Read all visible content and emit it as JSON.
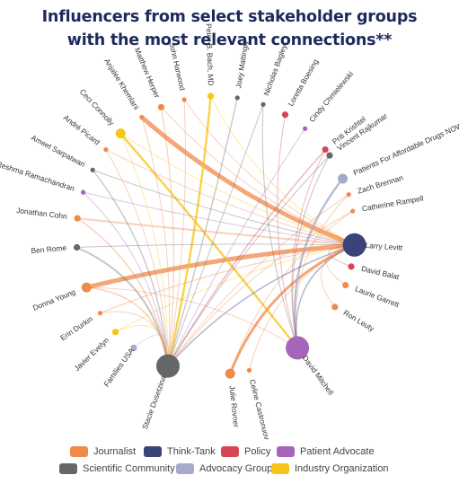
{
  "title": {
    "line1": "Influencers from select stakeholder groups",
    "line2": "with the most relevant connections**"
  },
  "colors": {
    "Journalist": "#f08a4b",
    "Think-Tank": "#3b4478",
    "Policy": "#d64654",
    "Patient Advocate": "#a565b8",
    "Scientific Community": "#666666",
    "Advocacy Group": "#a6abc9",
    "Industry Organization": "#f7c518"
  },
  "nodes": [
    {
      "id": "larry",
      "label": "Larry Levitt",
      "group": "Think-Tank",
      "size": "large"
    },
    {
      "id": "vincent",
      "label": "Vincent Rajkumar",
      "group": "Scientific Community",
      "size": "small"
    },
    {
      "id": "p4adn",
      "label": "Patients For Affordable Drugs NOW",
      "group": "Advocacy Group",
      "size": "medium"
    },
    {
      "id": "zach",
      "label": "Zach Brennan",
      "group": "Journalist",
      "size": "tiny"
    },
    {
      "id": "cath",
      "label": "Catherine Rampell",
      "group": "Journalist",
      "size": "tiny"
    },
    {
      "id": "dbalat",
      "label": "David Balat",
      "group": "Policy",
      "size": "small"
    },
    {
      "id": "laurie",
      "label": "Laurie Garrett",
      "group": "Journalist",
      "size": "small"
    },
    {
      "id": "ron",
      "label": "Ron Leuty",
      "group": "Journalist",
      "size": "small"
    },
    {
      "id": "dmitch",
      "label": "David Mitchell",
      "group": "Patient Advocate",
      "size": "large"
    },
    {
      "id": "celine",
      "label": "Celine Castronuovo",
      "group": "Journalist",
      "size": "tiny"
    },
    {
      "id": "julie",
      "label": "Julie Rovner",
      "group": "Journalist",
      "size": "medium"
    },
    {
      "id": "stacie",
      "label": "Stacie Dusetzina",
      "group": "Scientific Community",
      "size": "large"
    },
    {
      "id": "famusa",
      "label": "Families USA",
      "group": "Advocacy Group",
      "size": "small"
    },
    {
      "id": "javier",
      "label": "Javier Evelyn",
      "group": "Industry Organization",
      "size": "small"
    },
    {
      "id": "erin",
      "label": "Erin Durkin",
      "group": "Journalist",
      "size": "tiny"
    },
    {
      "id": "donna",
      "label": "Donna Young",
      "group": "Journalist",
      "size": "medium"
    },
    {
      "id": "benrome",
      "label": "Ben Rome",
      "group": "Scientific Community",
      "size": "small"
    },
    {
      "id": "jcohn",
      "label": "Jonathan Cohn",
      "group": "Journalist",
      "size": "small"
    },
    {
      "id": "reshma",
      "label": "Reshma Ramachandran",
      "group": "Patient Advocate",
      "size": "tiny"
    },
    {
      "id": "ameet",
      "label": "Ameet Sarpatwari",
      "group": "Scientific Community",
      "size": "tiny"
    },
    {
      "id": "andre",
      "label": "André Picard",
      "group": "Journalist",
      "size": "tiny"
    },
    {
      "id": "ceci",
      "label": "Ceci Connolly",
      "group": "Industry Organization",
      "size": "medium"
    },
    {
      "id": "anjalee",
      "label": "Anjalee Khemlani",
      "group": "Journalist",
      "size": "tiny"
    },
    {
      "id": "mherper",
      "label": "Matthew Herper",
      "group": "Journalist",
      "size": "small"
    },
    {
      "id": "jharwood",
      "label": "John Harwood",
      "group": "Journalist",
      "size": "tiny"
    },
    {
      "id": "pbach",
      "label": "Peter B. Bach, MD",
      "group": "Industry Organization",
      "size": "small"
    },
    {
      "id": "joey",
      "label": "Joey Mattingly",
      "group": "Scientific Community",
      "size": "tiny"
    },
    {
      "id": "nbagley",
      "label": "Nicholas Bagley",
      "group": "Scientific Community",
      "size": "tiny"
    },
    {
      "id": "loretta",
      "label": "Loretta Boesing",
      "group": "Policy",
      "size": "small"
    },
    {
      "id": "cindy",
      "label": "Cindy Chmielewski",
      "group": "Patient Advocate",
      "size": "tiny"
    },
    {
      "id": "priti",
      "label": "Priti Krishtel",
      "group": "Policy",
      "size": "small"
    }
  ],
  "edges": [
    {
      "a": "anjalee",
      "b": "larry",
      "w": 5
    },
    {
      "a": "donna",
      "b": "larry",
      "w": 5
    },
    {
      "a": "ceci",
      "b": "dmitch",
      "w": 2.5
    },
    {
      "a": "pbach",
      "b": "stacie",
      "w": 2.5
    },
    {
      "a": "julie",
      "b": "larry",
      "w": 3
    },
    {
      "a": "p4adn",
      "b": "dmitch",
      "w": 2.5
    },
    {
      "a": "mherper",
      "b": "stacie",
      "w": 1.2
    },
    {
      "a": "mherper",
      "b": "larry",
      "w": 1
    },
    {
      "a": "jharwood",
      "b": "larry",
      "w": 1
    },
    {
      "a": "jharwood",
      "b": "stacie",
      "w": 1
    },
    {
      "a": "joey",
      "b": "stacie",
      "w": 1.3
    },
    {
      "a": "nbagley",
      "b": "stacie",
      "w": 1
    },
    {
      "a": "nbagley",
      "b": "dmitch",
      "w": 1
    },
    {
      "a": "loretta",
      "b": "dmitch",
      "w": 1
    },
    {
      "a": "cindy",
      "b": "stacie",
      "w": 1
    },
    {
      "a": "priti",
      "b": "stacie",
      "w": 1.5
    },
    {
      "a": "priti",
      "b": "dmitch",
      "w": 1
    },
    {
      "a": "vincent",
      "b": "stacie",
      "w": 1
    },
    {
      "a": "vincent",
      "b": "dmitch",
      "w": 1
    },
    {
      "a": "zach",
      "b": "stacie",
      "w": 1
    },
    {
      "a": "zach",
      "b": "dmitch",
      "w": 1
    },
    {
      "a": "cath",
      "b": "stacie",
      "w": 1
    },
    {
      "a": "cath",
      "b": "julie",
      "w": 1
    },
    {
      "a": "larry",
      "b": "stacie",
      "w": 1.5
    },
    {
      "a": "larry",
      "b": "dmitch",
      "w": 1.5
    },
    {
      "a": "dbalat",
      "b": "larry",
      "w": 1
    },
    {
      "a": "laurie",
      "b": "larry",
      "w": 1
    },
    {
      "a": "ron",
      "b": "larry",
      "w": 1
    },
    {
      "a": "celine",
      "b": "larry",
      "w": 1
    },
    {
      "a": "jcohn",
      "b": "larry",
      "w": 2
    },
    {
      "a": "jcohn",
      "b": "stacie",
      "w": 1.5
    },
    {
      "a": "benrome",
      "b": "stacie",
      "w": 2
    },
    {
      "a": "benrome",
      "b": "larry",
      "w": 1
    },
    {
      "a": "reshma",
      "b": "stacie",
      "w": 1
    },
    {
      "a": "reshma",
      "b": "larry",
      "w": 1
    },
    {
      "a": "ameet",
      "b": "stacie",
      "w": 1.3
    },
    {
      "a": "ameet",
      "b": "larry",
      "w": 1
    },
    {
      "a": "andre",
      "b": "larry",
      "w": 1
    },
    {
      "a": "andre",
      "b": "stacie",
      "w": 1
    },
    {
      "a": "ceci",
      "b": "larry",
      "w": 1
    },
    {
      "a": "ceci",
      "b": "stacie",
      "w": 1
    },
    {
      "a": "erin",
      "b": "stacie",
      "w": 1
    },
    {
      "a": "erin",
      "b": "larry",
      "w": 1.2
    },
    {
      "a": "javier",
      "b": "stacie",
      "w": 1
    },
    {
      "a": "javier",
      "b": "larry",
      "w": 1
    },
    {
      "a": "famusa",
      "b": "stacie",
      "w": 1
    },
    {
      "a": "donna",
      "b": "stacie",
      "w": 1.5
    },
    {
      "a": "donna",
      "b": "dmitch",
      "w": 1
    },
    {
      "a": "pbach",
      "b": "larry",
      "w": 1
    },
    {
      "a": "anjalee",
      "b": "stacie",
      "w": 1
    }
  ],
  "legend": [
    {
      "label": "Journalist",
      "group": "Journalist"
    },
    {
      "label": "Think-Tank",
      "group": "Think-Tank"
    },
    {
      "label": "Policy",
      "group": "Policy"
    },
    {
      "label": "Patient Advocate",
      "group": "Patient Advocate"
    },
    {
      "label": "Scientific Community",
      "group": "Scientific Community"
    },
    {
      "label": "Advocacy Group",
      "group": "Advocacy Group"
    },
    {
      "label": "Industry Organization",
      "group": "Industry Organization"
    }
  ]
}
